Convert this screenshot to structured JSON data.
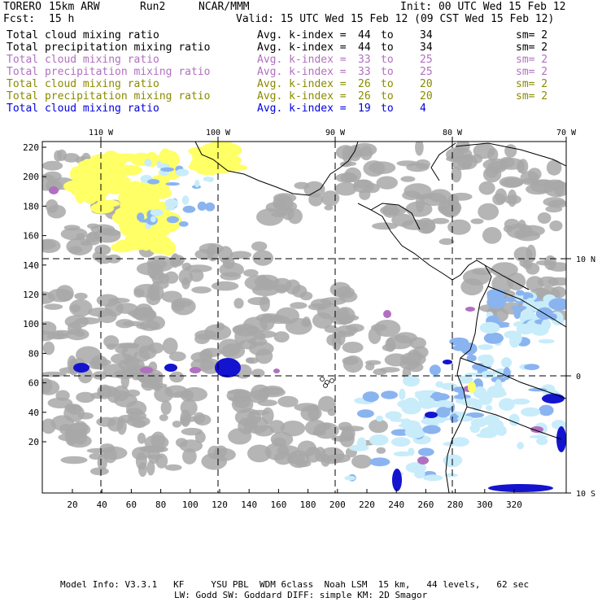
{
  "header": {
    "model": "TORERO",
    "resolution": "15km ARW",
    "run": "Run2",
    "org": "NCAR/MMM",
    "init": "Init: 00 UTC Wed 15 Feb 12",
    "fcst_label": "Fcst:",
    "fcst_value": "15 h",
    "valid": "Valid: 15 UTC Wed 15 Feb 12 (09 CST Wed 15 Feb 12)"
  },
  "legend": [
    {
      "field": "Total cloud mixing ratio",
      "stat": "Avg. k-index =",
      "from": "44",
      "to_word": "to",
      "to": "34",
      "sm": "sm= 2",
      "color": "#000000"
    },
    {
      "field": "Total precipitation mixing ratio",
      "stat": "Avg. k-index =",
      "from": "44",
      "to_word": "to",
      "to": "34",
      "sm": "sm= 2",
      "color": "#000000"
    },
    {
      "field": "Total cloud mixing ratio",
      "stat": "Avg. k-index =",
      "from": "33",
      "to_word": "to",
      "to": "25",
      "sm": "sm= 2",
      "color": "#b070c0"
    },
    {
      "field": "Total precipitation mixing ratio",
      "stat": "Avg. k-index =",
      "from": "33",
      "to_word": "to",
      "to": "25",
      "sm": "sm= 2",
      "color": "#b070c0"
    },
    {
      "field": "Total cloud mixing ratio",
      "stat": "Avg. k-index =",
      "from": "26",
      "to_word": "to",
      "to": "20",
      "sm": "sm= 2",
      "color": "#8a8a00"
    },
    {
      "field": "Total precipitation mixing ratio",
      "stat": "Avg. k-index =",
      "from": "26",
      "to_word": "to",
      "to": "20",
      "sm": "sm= 2",
      "color": "#8a8a00"
    },
    {
      "field": "Total cloud mixing ratio",
      "stat": "Avg. k-index =",
      "from": "19",
      "to_word": "to",
      "to": "4",
      "sm": "",
      "color": "#0000e0"
    }
  ],
  "map": {
    "lon_labels": [
      "110 W",
      "100 W",
      "90 W",
      "80 W",
      "70 W"
    ],
    "lat_labels": [
      "10 N",
      "0",
      "10 S"
    ],
    "y_ticks": [
      "220",
      "200",
      "180",
      "160",
      "140",
      "120",
      "100",
      "80",
      "60",
      "40",
      "20"
    ],
    "x_ticks": [
      "20",
      "40",
      "60",
      "80",
      "100",
      "120",
      "140",
      "160",
      "180",
      "200",
      "220",
      "240",
      "260",
      "280",
      "300",
      "320"
    ],
    "colors": {
      "gray": "#a8a8a8",
      "yellow": "#ffff66",
      "light_blue": "#c8ecfa",
      "mid_blue": "#8ab4f0",
      "dark_blue": "#1414d0",
      "purple": "#b070c0"
    }
  },
  "footer": {
    "line1": "Model Info: V3.3.1   KF     YSU PBL  WDM 6class  Noah LSM  15 km,   44 levels,   62 sec",
    "line2": "LW: Godd SW: Goddard DIFF: simple KM: 2D Smagor"
  }
}
